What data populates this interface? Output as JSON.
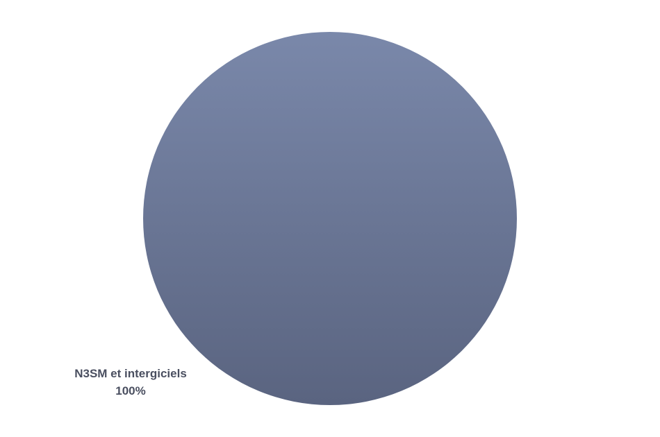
{
  "chart_data": {
    "type": "pie",
    "title": "",
    "categories": [
      "N3SM et intergiciels"
    ],
    "values": [
      100
    ],
    "labels": [
      {
        "category": "N3SM et intergiciels",
        "value_text": "100%"
      }
    ],
    "colors": {
      "slice_top": "#7a88aa",
      "slice_bottom": "#5a6480",
      "label": "#4a4f60"
    },
    "legend": "none"
  }
}
